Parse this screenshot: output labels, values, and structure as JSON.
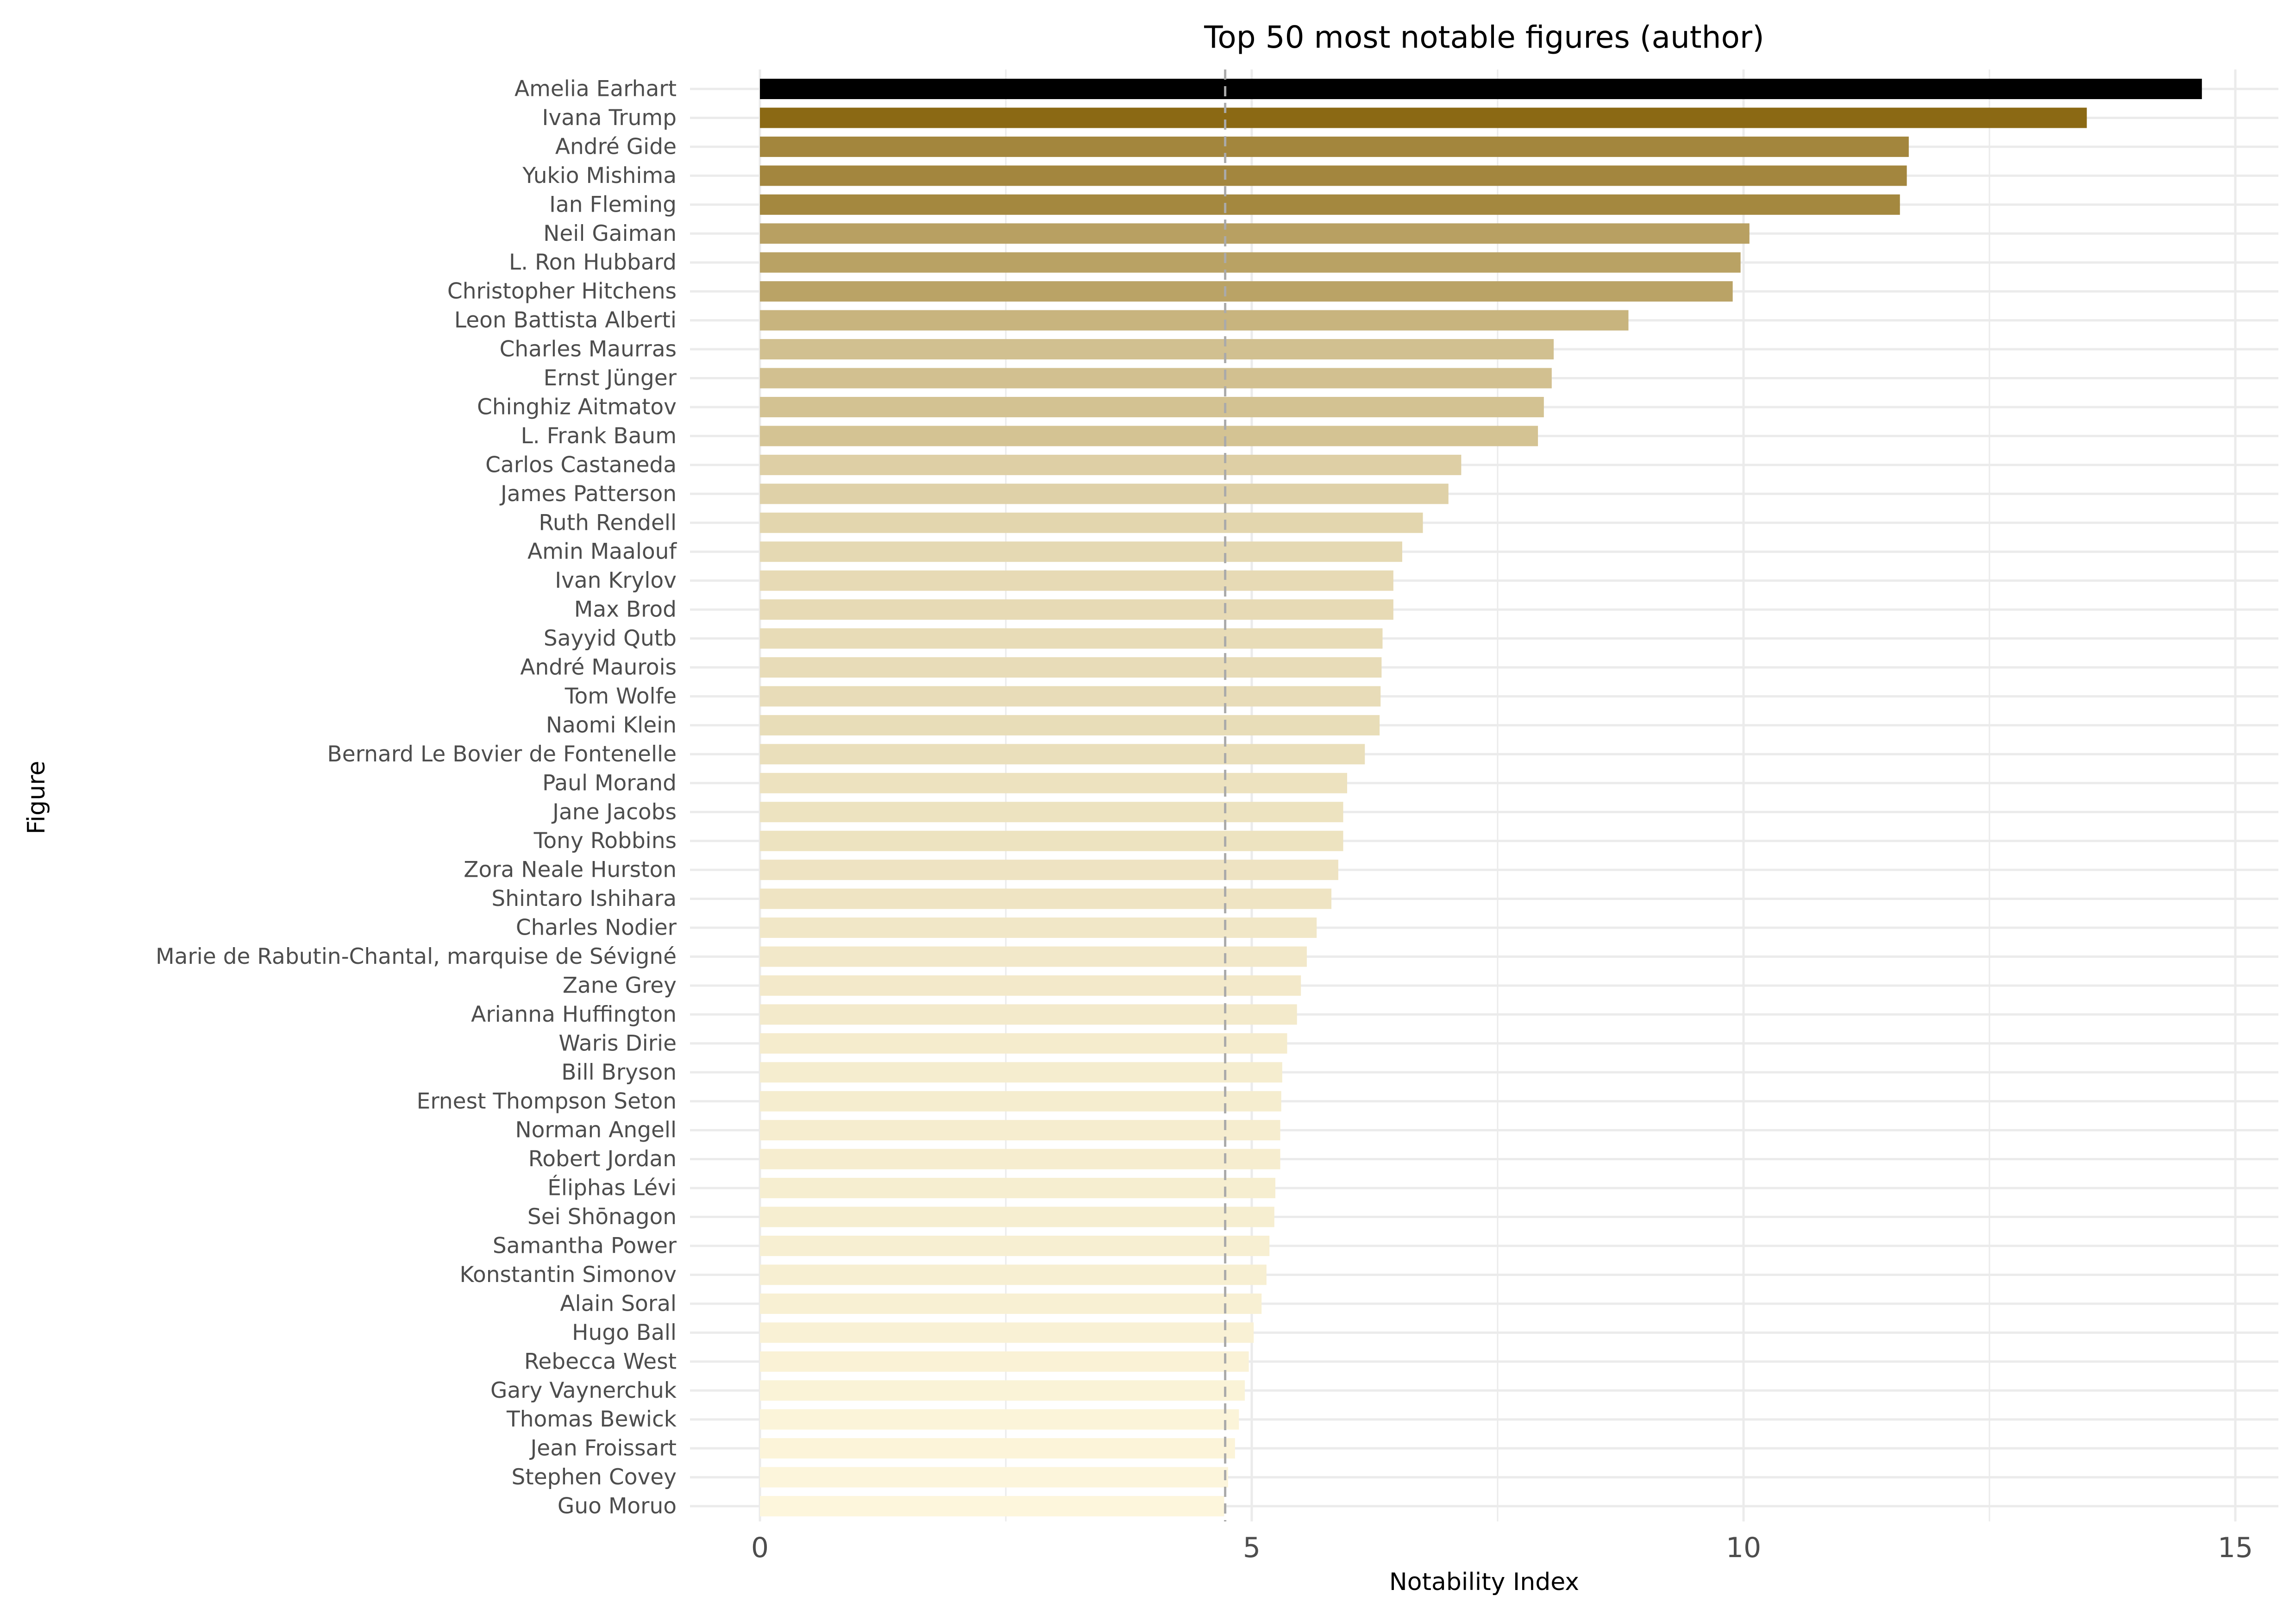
{
  "chart_data": {
    "type": "bar",
    "orientation": "horizontal",
    "title": "Top 50 most notable figures (author)",
    "xlabel": "Notability Index",
    "ylabel": "Figure",
    "xlim": [
      0,
      15
    ],
    "xticks": [
      0,
      5,
      10,
      15
    ],
    "xtick_labels": [
      "0",
      "5",
      "10",
      "15"
    ],
    "reference_line": 4.73,
    "grid": true,
    "color_low": "#fdf6dc",
    "color_high": "#8b6914",
    "color_top": "#000000",
    "categories": [
      "Amelia Earhart",
      "Ivana Trump",
      "André Gide",
      "Yukio Mishima",
      "Ian Fleming",
      "Neil Gaiman",
      "L. Ron Hubbard",
      "Christopher Hitchens",
      "Leon Battista Alberti",
      "Charles Maurras",
      "Ernst Jünger",
      "Chinghiz Aitmatov",
      "L. Frank Baum",
      "Carlos Castaneda",
      "James Patterson",
      "Ruth Rendell",
      "Amin Maalouf",
      "Ivan Krylov",
      "Max Brod",
      "Sayyid Qutb",
      "André Maurois",
      "Tom Wolfe",
      "Naomi Klein",
      "Bernard Le Bovier de Fontenelle",
      "Paul Morand",
      "Jane Jacobs",
      "Tony Robbins",
      "Zora Neale Hurston",
      "Shintaro Ishihara",
      "Charles Nodier",
      "Marie de Rabutin-Chantal, marquise de Sévigné",
      "Zane Grey",
      "Arianna Huffington",
      "Waris Dirie",
      "Bill Bryson",
      "Ernest Thompson Seton",
      "Norman Angell",
      "Robert Jordan",
      "Éliphas Lévi",
      "Sei Shōnagon",
      "Samantha Power",
      "Konstantin Simonov",
      "Alain Soral",
      "Hugo Ball",
      "Rebecca West",
      "Gary Vaynerchuk",
      "Thomas Bewick",
      "Jean Froissart",
      "Stephen Covey",
      "Guo Moruo"
    ],
    "values": [
      14.66,
      13.49,
      11.68,
      11.66,
      11.59,
      10.06,
      9.97,
      9.89,
      8.83,
      8.07,
      8.05,
      7.97,
      7.91,
      7.13,
      7.0,
      6.74,
      6.53,
      6.44,
      6.44,
      6.33,
      6.32,
      6.31,
      6.3,
      6.15,
      5.97,
      5.93,
      5.93,
      5.88,
      5.81,
      5.66,
      5.56,
      5.5,
      5.46,
      5.36,
      5.31,
      5.3,
      5.29,
      5.29,
      5.24,
      5.23,
      5.18,
      5.15,
      5.1,
      5.02,
      4.97,
      4.93,
      4.87,
      4.83,
      4.76,
      4.72
    ]
  }
}
